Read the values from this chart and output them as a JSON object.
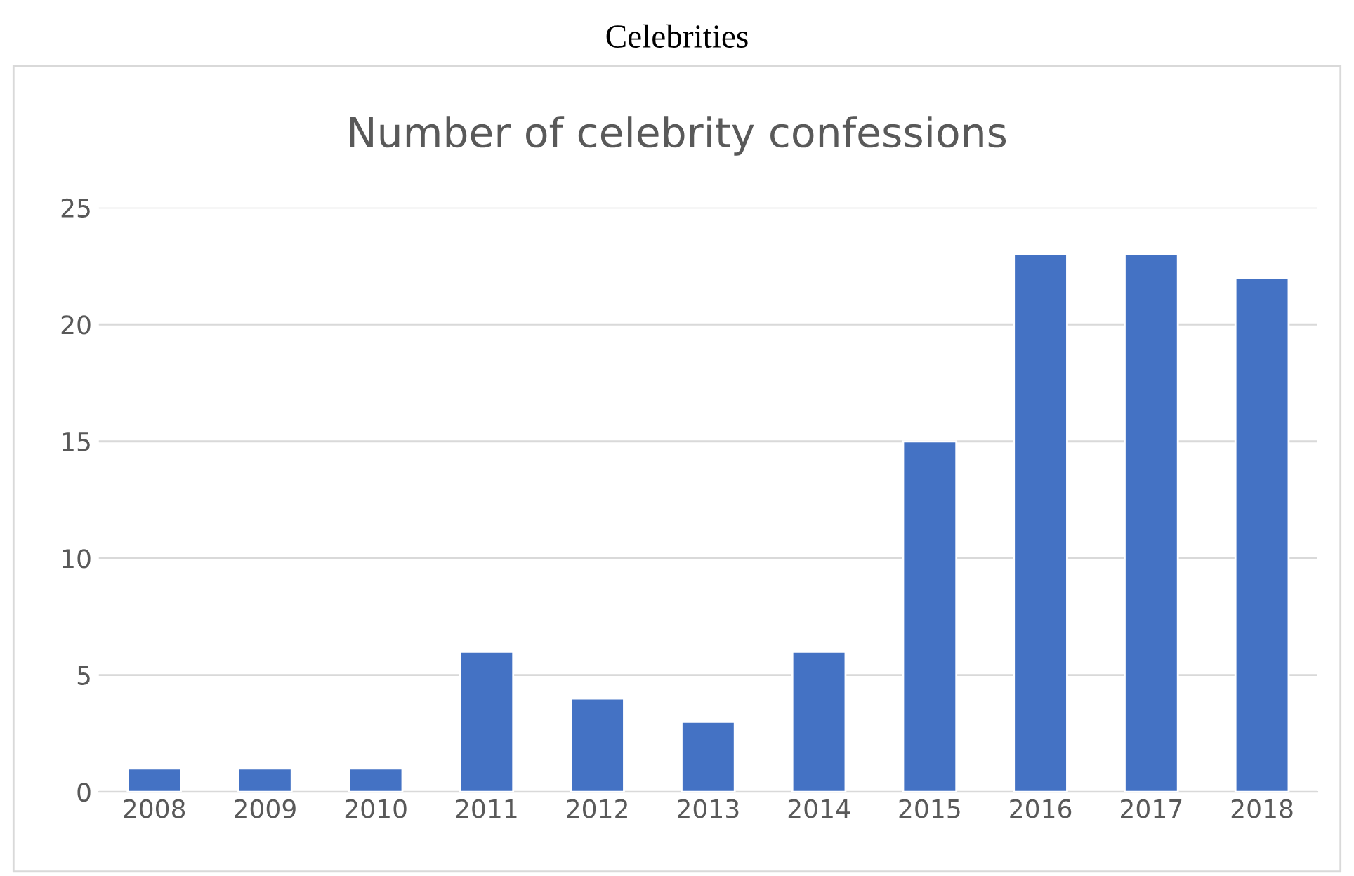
{
  "chart_data": {
    "type": "bar",
    "title": "Number of celebrity confessions",
    "annotations": [
      "Celebrities"
    ],
    "categories": [
      "2008",
      "2009",
      "2010",
      "2011",
      "2012",
      "2013",
      "2014",
      "2015",
      "2016",
      "2017",
      "2018"
    ],
    "values": [
      1,
      1,
      1,
      6,
      4,
      3,
      6,
      15,
      23,
      23,
      22
    ],
    "color": "#4472c4",
    "ylim": [
      0,
      25
    ],
    "yticks": [
      0,
      5,
      10,
      15,
      20,
      25
    ],
    "grid": "y",
    "legend": false
  }
}
